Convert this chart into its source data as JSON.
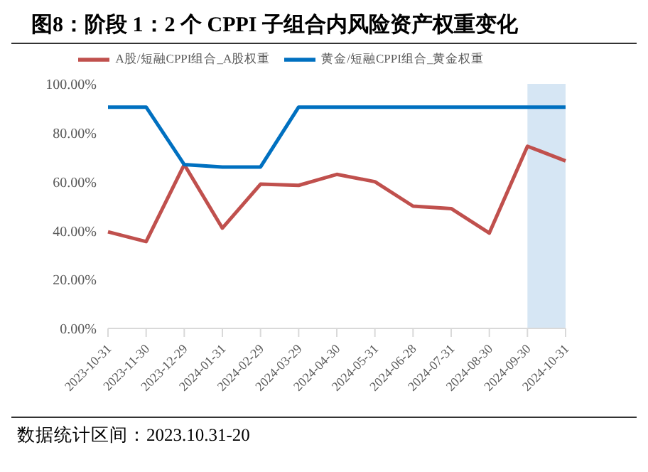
{
  "chart_data": {
    "type": "line",
    "title": "图8：阶段 1：2 个 CPPI 子组合内风险资产权重变化",
    "categories": [
      "2023-10-31",
      "2023-11-30",
      "2023-12-29",
      "2024-01-31",
      "2024-02-29",
      "2024-03-29",
      "2024-04-30",
      "2024-05-31",
      "2024-06-28",
      "2024-07-31",
      "2024-08-30",
      "2024-09-30",
      "2024-10-31"
    ],
    "series": [
      {
        "name": "A股/短融CPPI组合_A股权重",
        "color": "#c0504d",
        "values": [
          39.5,
          35.5,
          67,
          41,
          59,
          58.5,
          63,
          60,
          50,
          49,
          39,
          74.5,
          68.5
        ]
      },
      {
        "name": "黄金/短融CPPI组合_黄金权重",
        "color": "#0070c0",
        "values": [
          90.5,
          90.5,
          67,
          66,
          66,
          90.5,
          90.5,
          90.5,
          90.5,
          90.5,
          90.5,
          90.5,
          90.5
        ]
      }
    ],
    "ylim": [
      0,
      100
    ],
    "yticks": [
      {
        "value": 0,
        "label": "0.00%"
      },
      {
        "value": 20,
        "label": "20.00%"
      },
      {
        "value": 40,
        "label": "40.00%"
      },
      {
        "value": 60,
        "label": "60.00%"
      },
      {
        "value": 80,
        "label": "80.00%"
      },
      {
        "value": 100,
        "label": "100.00%"
      }
    ],
    "bands": [
      {
        "axis": "x",
        "from": "2024-09-30",
        "to": "2024-10-31",
        "color": "#d6e6f4"
      }
    ],
    "grid": false,
    "legend": "top",
    "marker": "none",
    "line_style": "solid",
    "annotations": [
      "数据统计区间：2023.10.31-20"
    ]
  }
}
